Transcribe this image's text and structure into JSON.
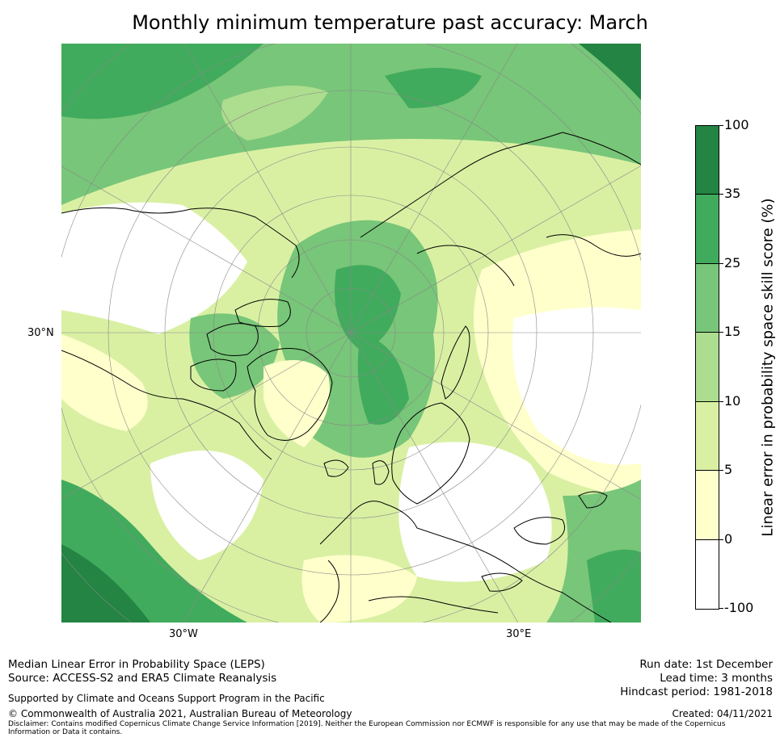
{
  "title": "Monthly minimum temperature past accuracy: March",
  "map": {
    "projection": "North polar stereographic",
    "lat_label": "30°N",
    "lon_labels": [
      "30°W",
      "30°E"
    ],
    "colors": {
      "band_0": "#ffffff",
      "band_1": "#ffffcc",
      "band_2": "#d9f0a3",
      "band_3": "#addd8e",
      "band_4": "#78c679",
      "band_5": "#41ab5d",
      "band_6": "#238443",
      "coast": "#000000",
      "grid": "#888888"
    }
  },
  "colorbar": {
    "label": "Linear error in probability space skill score (%)",
    "ticks": [
      "100",
      "35",
      "25",
      "15",
      "10",
      "5",
      "0",
      "-100"
    ],
    "bands": [
      {
        "from": "-100",
        "to": "0",
        "color": "#ffffff"
      },
      {
        "from": "0",
        "to": "5",
        "color": "#ffffcc"
      },
      {
        "from": "5",
        "to": "10",
        "color": "#d9f0a3"
      },
      {
        "from": "10",
        "to": "15",
        "color": "#addd8e"
      },
      {
        "from": "15",
        "to": "25",
        "color": "#78c679"
      },
      {
        "from": "25",
        "to": "35",
        "color": "#41ab5d"
      },
      {
        "from": "35",
        "to": "100",
        "color": "#238443"
      }
    ]
  },
  "footer": {
    "method": "Median Linear Error in Probability Space (LEPS)",
    "source": "Source: ACCESS-S2 and ERA5 Climate Reanalysis",
    "support": "Supported by Climate and Oceans Support Program in the Pacific",
    "copyright": "© Commonwealth of Australia 2021, Australian Bureau of Meteorology",
    "disclaimer": "Disclaimer: Contains modified Copernicus Climate Change Service Information [2019]. Neither the European Commission nor ECMWF is responsible for any use that may be made of the Copernicus Information or Data it contains.",
    "run_date": "Run date: 1st December",
    "lead_time": "Lead time: 3 months",
    "hindcast": "Hindcast period: 1981-2018",
    "created": "Created: 04/11/2021"
  }
}
